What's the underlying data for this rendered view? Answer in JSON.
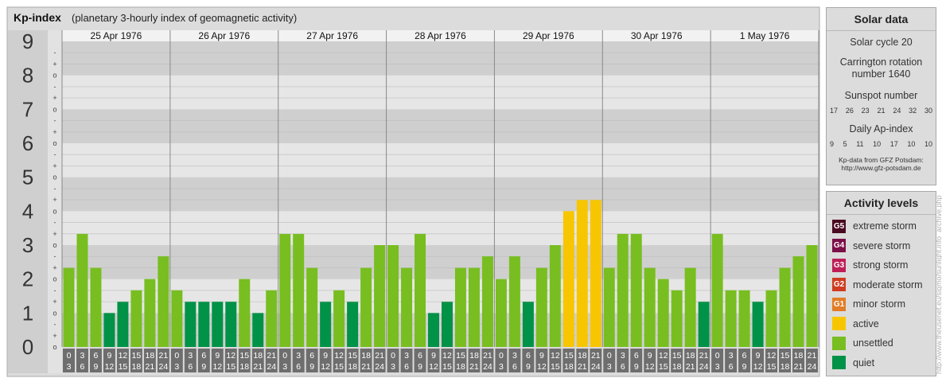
{
  "header": {
    "title": "Kp-index",
    "subtitle": "(planetary 3-hourly index of geomagnetic activity)"
  },
  "chart_data": {
    "type": "bar",
    "title": "Kp-index",
    "subtitle": "(planetary 3-hourly index of geomagnetic activity)",
    "ylim": [
      0,
      9
    ],
    "y_ticks": [
      "0",
      "1",
      "2",
      "3",
      "4",
      "5",
      "6",
      "7",
      "8",
      "9"
    ],
    "y_minor_ticks": [
      "o",
      "+",
      "-"
    ],
    "days": [
      "25 Apr 1976",
      "26 Apr 1976",
      "27 Apr 1976",
      "28 Apr 1976",
      "29 Apr 1976",
      "30 Apr 1976",
      "1 May 1976"
    ],
    "hour_start_labels": [
      "0",
      "3",
      "6",
      "9",
      "12",
      "15",
      "18",
      "21"
    ],
    "hour_end_labels": [
      "3",
      "6",
      "9",
      "12",
      "15",
      "18",
      "21",
      "24"
    ],
    "values": [
      2.33,
      3.33,
      2.33,
      1.0,
      1.33,
      1.67,
      2.0,
      2.67,
      1.67,
      1.33,
      1.33,
      1.33,
      1.33,
      2.0,
      1.0,
      1.67,
      3.33,
      3.33,
      2.33,
      1.33,
      1.67,
      1.33,
      2.33,
      3.0,
      3.0,
      2.33,
      3.33,
      1.0,
      1.33,
      2.33,
      2.33,
      2.67,
      2.0,
      2.67,
      1.33,
      2.33,
      3.0,
      4.0,
      4.33,
      4.33,
      2.33,
      3.33,
      3.33,
      2.33,
      2.0,
      1.67,
      2.33,
      1.33,
      3.33,
      1.67,
      1.67,
      1.33,
      1.67,
      2.33,
      2.67,
      3.0
    ],
    "levels": [
      "unsettled",
      "unsettled",
      "unsettled",
      "quiet",
      "quiet",
      "unsettled",
      "unsettled",
      "unsettled",
      "unsettled",
      "quiet",
      "quiet",
      "quiet",
      "quiet",
      "unsettled",
      "quiet",
      "unsettled",
      "unsettled",
      "unsettled",
      "unsettled",
      "quiet",
      "unsettled",
      "quiet",
      "unsettled",
      "unsettled",
      "unsettled",
      "unsettled",
      "unsettled",
      "quiet",
      "quiet",
      "unsettled",
      "unsettled",
      "unsettled",
      "unsettled",
      "unsettled",
      "quiet",
      "unsettled",
      "unsettled",
      "active",
      "active",
      "active",
      "unsettled",
      "unsettled",
      "unsettled",
      "unsettled",
      "unsettled",
      "unsettled",
      "unsettled",
      "quiet",
      "unsettled",
      "unsettled",
      "unsettled",
      "quiet",
      "unsettled",
      "unsettled",
      "unsettled",
      "unsettled"
    ],
    "colors": {
      "quiet": "#009246",
      "unsettled": "#78be20",
      "active": "#f7c600",
      "G1": "#e27d28",
      "G2": "#cf3c21",
      "G3": "#be1f56",
      "G4": "#7c0f48",
      "G5": "#4a0a21"
    },
    "credit": "http://www.theusenet.eu/sigmo/sunlight.info_archive.php"
  },
  "solar_panel": {
    "title": "Solar data",
    "cycle": "Solar cycle 20",
    "carrington_line1": "Carrington rotation",
    "carrington_line2": "number 1640",
    "sunspot_label": "Sunspot number",
    "sunspot_values": [
      "17",
      "26",
      "23",
      "21",
      "24",
      "32",
      "30"
    ],
    "ap_label": "Daily Ap-index",
    "ap_values": [
      "9",
      "5",
      "11",
      "10",
      "17",
      "10",
      "10"
    ],
    "source_line1": "Kp-data from GFZ Potsdam:",
    "source_line2": "http://www.gfz-potsdam.de"
  },
  "activity_panel": {
    "title": "Activity levels",
    "items": [
      {
        "badge": "G5",
        "label": "extreme storm",
        "color": "#4a0a21"
      },
      {
        "badge": "G4",
        "label": "severe storm",
        "color": "#7c0f48"
      },
      {
        "badge": "G3",
        "label": "strong storm",
        "color": "#be1f56"
      },
      {
        "badge": "G2",
        "label": "moderate storm",
        "color": "#cf3c21"
      },
      {
        "badge": "G1",
        "label": "minor storm",
        "color": "#e27d28"
      },
      {
        "badge": "",
        "label": "active",
        "color": "#f7c600"
      },
      {
        "badge": "",
        "label": "unsettled",
        "color": "#78be20"
      },
      {
        "badge": "",
        "label": "quiet",
        "color": "#009246"
      }
    ]
  }
}
